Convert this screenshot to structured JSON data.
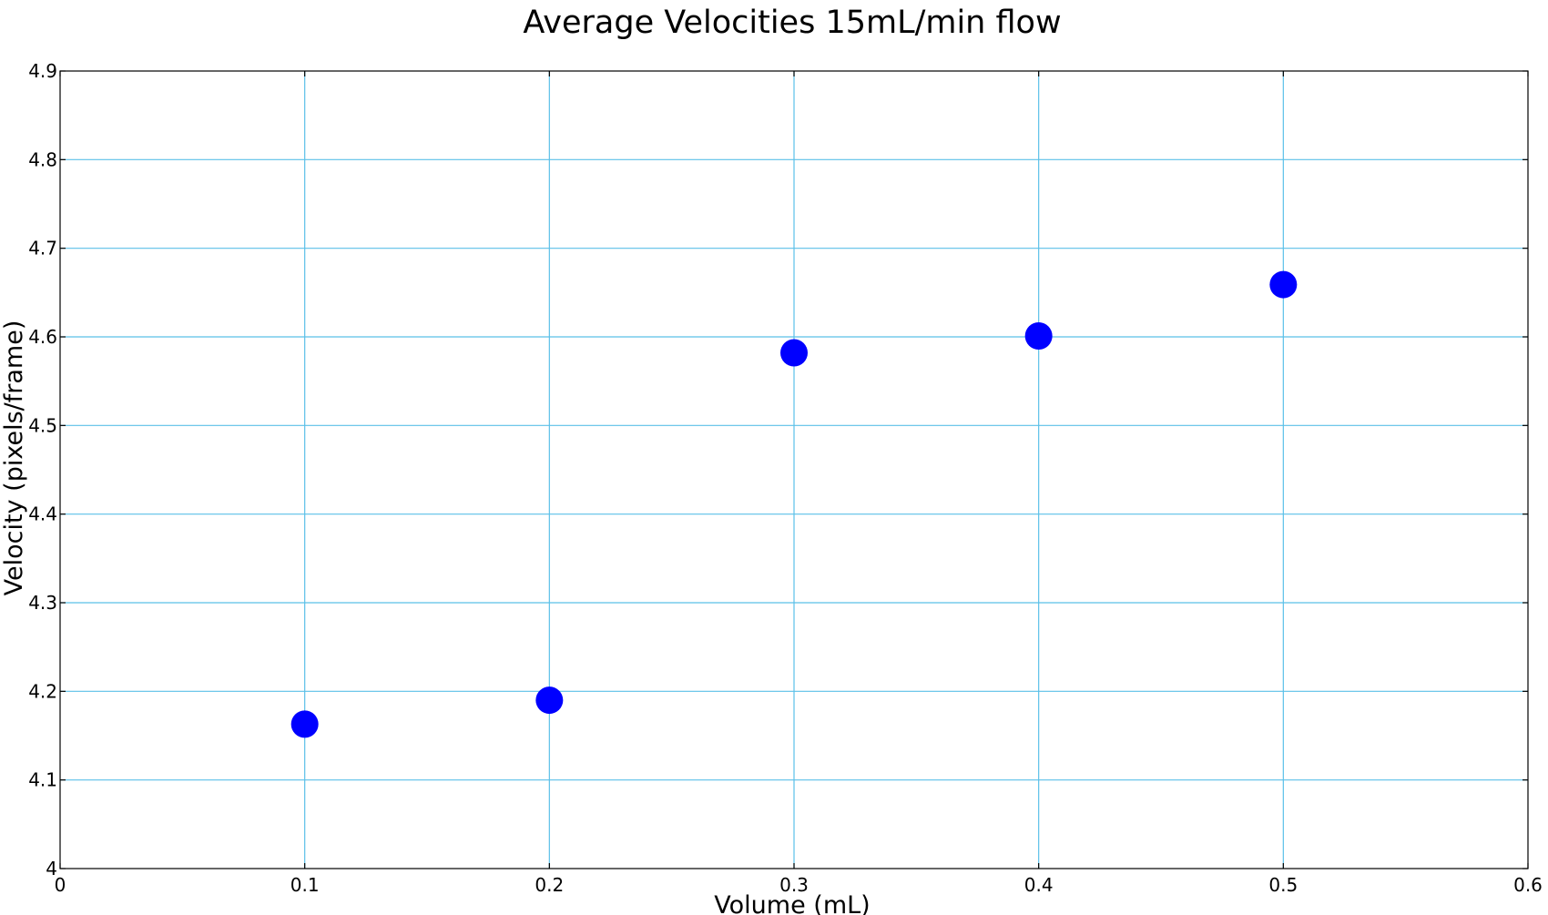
{
  "chart_data": {
    "type": "scatter",
    "title": "Average Velocities 15mL/min flow",
    "xlabel": "Volume (mL)",
    "ylabel": "Velocity (pixels/frame)",
    "xlim": [
      0,
      0.6
    ],
    "ylim": [
      4,
      4.9
    ],
    "xticks": [
      "0",
      "0.1",
      "0.2",
      "0.3",
      "0.4",
      "0.5",
      "0.6"
    ],
    "yticks": [
      "4",
      "4.1",
      "4.2",
      "4.3",
      "4.4",
      "4.5",
      "4.6",
      "4.7",
      "4.8",
      "4.9"
    ],
    "grid": true,
    "legend": "none",
    "colors": {
      "marker": "#0000ff",
      "grid": "#5bc0e8",
      "frame": "#000000"
    },
    "series": [
      {
        "x": [
          0.1,
          0.2,
          0.3,
          0.4,
          0.5
        ],
        "y": [
          4.163,
          4.19,
          4.582,
          4.601,
          4.659
        ]
      }
    ]
  }
}
